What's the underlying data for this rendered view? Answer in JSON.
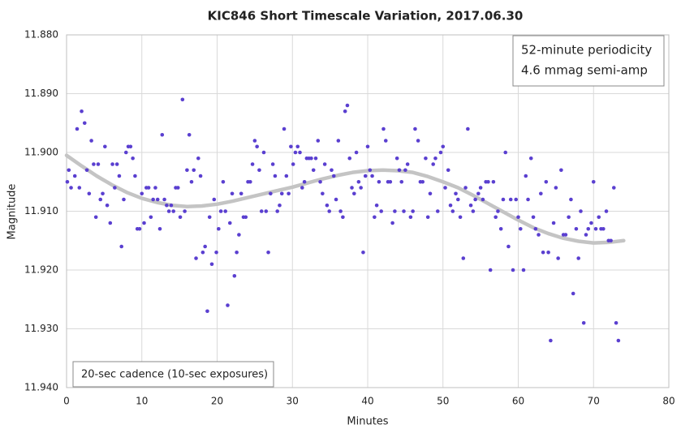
{
  "chart_data": {
    "type": "scatter",
    "title": "KIC846 Short Timescale Variation, 2017.06.30",
    "x_label": "Minutes",
    "y_label": "Magnitude",
    "annotations": [
      "52-minute periodicity",
      "4.6 mmag semi-amp",
      "20-sec cadence (10-sec exposures)"
    ],
    "color": "#5a3fd0",
    "grid": true,
    "y_inverted": true,
    "xlim": [
      0,
      80
    ],
    "xticks": [
      0,
      10,
      20,
      30,
      40,
      50,
      60,
      70,
      80
    ],
    "ylim": [
      11.88,
      11.94
    ],
    "yticks": [
      {
        "value": 11.88,
        "label": "11.880"
      },
      {
        "value": 11.89,
        "label": "11.890"
      },
      {
        "value": 11.9,
        "label": "11.900"
      },
      {
        "value": 11.91,
        "label": "11.910"
      },
      {
        "value": 11.92,
        "label": "11.920"
      },
      {
        "value": 11.93,
        "label": "11.930"
      },
      {
        "value": 11.94,
        "label": "11.940"
      }
    ],
    "x": [
      0.1,
      0.3,
      0.6,
      1.1,
      1.4,
      1.7,
      2.0,
      2.4,
      2.7,
      3.0,
      3.3,
      3.6,
      3.9,
      4.2,
      4.5,
      4.8,
      5.1,
      5.4,
      5.8,
      6.1,
      6.4,
      6.7,
      7.0,
      7.3,
      7.6,
      7.9,
      8.2,
      8.5,
      8.8,
      9.1,
      9.4,
      9.7,
      10.0,
      10.3,
      10.6,
      10.9,
      11.2,
      11.5,
      11.8,
      12.1,
      12.4,
      12.7,
      13.0,
      13.3,
      13.6,
      13.9,
      14.2,
      14.5,
      14.8,
      15.1,
      15.4,
      15.7,
      16.0,
      16.3,
      16.6,
      16.9,
      17.2,
      17.5,
      17.8,
      18.1,
      18.4,
      18.7,
      19.0,
      19.3,
      19.6,
      19.9,
      20.2,
      20.5,
      20.8,
      21.1,
      21.4,
      21.7,
      22.0,
      22.3,
      22.6,
      22.9,
      23.2,
      23.5,
      23.8,
      24.1,
      24.4,
      24.7,
      25.0,
      25.3,
      25.6,
      25.9,
      26.2,
      26.5,
      26.8,
      27.1,
      27.4,
      27.7,
      28.0,
      28.3,
      28.6,
      28.9,
      29.2,
      29.5,
      29.8,
      30.1,
      30.4,
      30.7,
      31.0,
      31.3,
      31.6,
      31.9,
      32.2,
      32.5,
      32.8,
      33.1,
      33.4,
      33.7,
      34.0,
      34.3,
      34.6,
      34.9,
      35.2,
      35.5,
      35.8,
      36.1,
      36.4,
      36.7,
      37.0,
      37.3,
      37.6,
      37.9,
      38.2,
      38.5,
      38.8,
      39.1,
      39.4,
      39.7,
      40.0,
      40.3,
      40.6,
      40.9,
      41.2,
      41.5,
      41.8,
      42.1,
      42.4,
      42.7,
      43.0,
      43.3,
      43.6,
      43.9,
      44.2,
      44.5,
      44.8,
      45.0,
      45.3,
      45.7,
      46.0,
      46.3,
      46.7,
      47.0,
      47.3,
      47.7,
      48.0,
      48.3,
      48.7,
      49.0,
      49.3,
      49.7,
      50.0,
      50.3,
      50.7,
      51.0,
      51.3,
      51.7,
      52.0,
      52.3,
      52.7,
      53.0,
      53.3,
      53.7,
      54.0,
      54.3,
      54.7,
      55.0,
      55.3,
      55.7,
      56.0,
      56.3,
      56.7,
      57.0,
      57.3,
      57.7,
      58.0,
      58.3,
      58.7,
      59.0,
      59.3,
      59.7,
      60.0,
      60.3,
      60.7,
      61.0,
      61.3,
      61.7,
      62.0,
      62.3,
      62.7,
      63.0,
      63.3,
      63.7,
      64.0,
      64.3,
      64.7,
      65.0,
      65.3,
      65.7,
      66.0,
      66.3,
      66.7,
      67.0,
      67.3,
      67.7,
      68.0,
      68.3,
      68.7,
      69.0,
      69.3,
      69.7,
      70.0,
      70.3,
      70.7,
      71.0,
      71.3,
      71.7,
      72.0,
      72.3,
      72.7,
      73.0,
      73.3
    ],
    "values": [
      11.905,
      11.903,
      11.906,
      11.904,
      11.896,
      11.906,
      11.893,
      11.895,
      11.903,
      11.907,
      11.898,
      11.902,
      11.911,
      11.902,
      11.908,
      11.907,
      11.899,
      11.909,
      11.912,
      11.902,
      11.906,
      11.902,
      11.904,
      11.916,
      11.908,
      11.9,
      11.899,
      11.899,
      11.901,
      11.904,
      11.913,
      11.913,
      11.907,
      11.912,
      11.906,
      11.906,
      11.911,
      11.908,
      11.906,
      11.908,
      11.913,
      11.897,
      11.908,
      11.909,
      11.91,
      11.909,
      11.91,
      11.906,
      11.906,
      11.911,
      11.891,
      11.91,
      11.903,
      11.897,
      11.905,
      11.903,
      11.918,
      11.901,
      11.904,
      11.917,
      11.916,
      11.927,
      11.911,
      11.919,
      11.908,
      11.917,
      11.913,
      11.91,
      11.905,
      11.91,
      11.926,
      11.912,
      11.907,
      11.921,
      11.917,
      11.914,
      11.907,
      11.911,
      11.911,
      11.905,
      11.905,
      11.902,
      11.898,
      11.899,
      11.903,
      11.91,
      11.9,
      11.91,
      11.917,
      11.907,
      11.902,
      11.904,
      11.91,
      11.909,
      11.907,
      11.896,
      11.904,
      11.907,
      11.899,
      11.902,
      11.9,
      11.899,
      11.9,
      11.906,
      11.905,
      11.901,
      11.901,
      11.901,
      11.903,
      11.901,
      11.898,
      11.905,
      11.907,
      11.902,
      11.909,
      11.91,
      11.903,
      11.904,
      11.908,
      11.898,
      11.91,
      11.911,
      11.893,
      11.892,
      11.901,
      11.906,
      11.907,
      11.9,
      11.905,
      11.906,
      11.917,
      11.904,
      11.899,
      11.903,
      11.904,
      11.911,
      11.909,
      11.905,
      11.91,
      11.896,
      11.898,
      11.905,
      11.905,
      11.912,
      11.91,
      11.901,
      11.903,
      11.905,
      11.91,
      11.903,
      11.902,
      11.911,
      11.91,
      11.896,
      11.898,
      11.905,
      11.905,
      11.901,
      11.911,
      11.907,
      11.902,
      11.901,
      11.91,
      11.9,
      11.899,
      11.906,
      11.903,
      11.909,
      11.91,
      11.907,
      11.908,
      11.911,
      11.918,
      11.906,
      11.896,
      11.909,
      11.91,
      11.908,
      11.907,
      11.906,
      11.908,
      11.905,
      11.905,
      11.92,
      11.905,
      11.911,
      11.91,
      11.913,
      11.908,
      11.9,
      11.916,
      11.908,
      11.92,
      11.908,
      11.911,
      11.913,
      11.92,
      11.904,
      11.908,
      11.901,
      11.911,
      11.913,
      11.914,
      11.907,
      11.917,
      11.905,
      11.917,
      11.932,
      11.912,
      11.906,
      11.918,
      11.903,
      11.914,
      11.914,
      11.911,
      11.908,
      11.924,
      11.913,
      11.918,
      11.91,
      11.929,
      11.914,
      11.913,
      11.912,
      11.905,
      11.913,
      11.911,
      11.913,
      11.913,
      11.91,
      11.915,
      11.915,
      11.906,
      11.929,
      11.932
    ],
    "fit": {
      "color": "#c4c4c4",
      "x": [
        0,
        2,
        4,
        6,
        8,
        10,
        12,
        14,
        16,
        18,
        20,
        22,
        24,
        26,
        28,
        30,
        32,
        34,
        36,
        38,
        40,
        42,
        44,
        46,
        48,
        50,
        52,
        54,
        56,
        58,
        60,
        62,
        64,
        66,
        68,
        70,
        72,
        74
      ],
      "values": [
        11.9005,
        11.9023,
        11.904,
        11.9055,
        11.9068,
        11.9078,
        11.9085,
        11.909,
        11.9092,
        11.9091,
        11.9088,
        11.9083,
        11.9077,
        11.9071,
        11.9065,
        11.9059,
        11.9052,
        11.9045,
        11.9039,
        11.9034,
        11.9031,
        11.903,
        11.9031,
        11.9034,
        11.9041,
        11.905,
        11.906,
        11.9073,
        11.9087,
        11.9101,
        11.9115,
        11.9128,
        11.9138,
        11.9146,
        11.9151,
        11.9154,
        11.9153,
        11.915
      ]
    }
  }
}
